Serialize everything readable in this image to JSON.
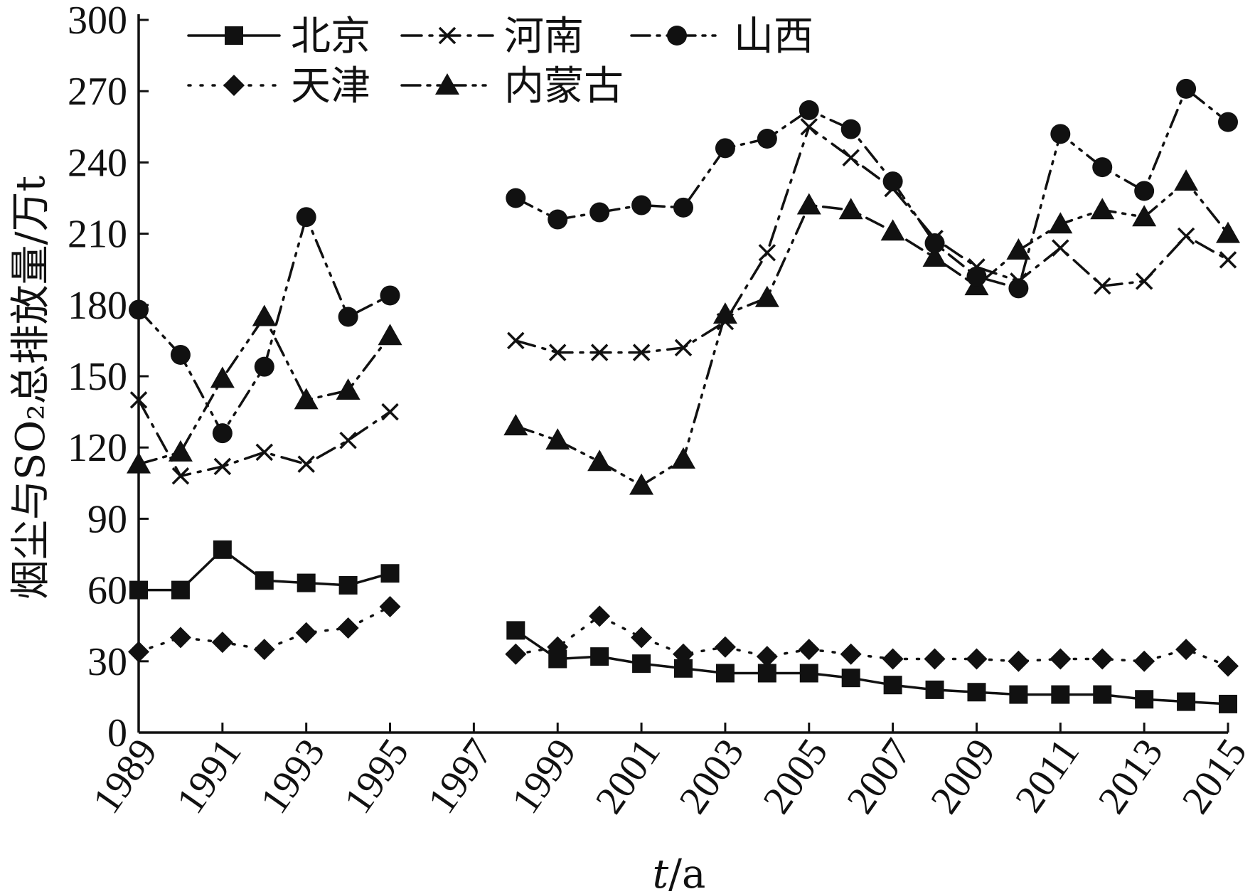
{
  "chart_data": {
    "type": "line",
    "xlabel_italic": "t",
    "xlabel_rest": "/a",
    "ylabel": "烟尘与SO₂总排放量/万t",
    "ylim": [
      0,
      300
    ],
    "xlim": [
      1989,
      2015
    ],
    "yticks": [
      0,
      30,
      60,
      90,
      120,
      150,
      180,
      210,
      240,
      270,
      300
    ],
    "xticks": [
      1989,
      1991,
      1993,
      1995,
      1997,
      1999,
      2001,
      2003,
      2005,
      2007,
      2009,
      2011,
      2013,
      2015
    ],
    "grid": false,
    "legend_position": "top-left",
    "series": [
      {
        "name": "北京",
        "marker": "square",
        "dash": "solid",
        "points": [
          [
            1989,
            60
          ],
          [
            1990,
            60
          ],
          [
            1991,
            77
          ],
          [
            1992,
            64
          ],
          [
            1993,
            63
          ],
          [
            1994,
            62
          ],
          [
            1995,
            67
          ],
          [
            1998,
            43
          ],
          [
            1999,
            31
          ],
          [
            2000,
            32
          ],
          [
            2001,
            29
          ],
          [
            2002,
            27
          ],
          [
            2003,
            25
          ],
          [
            2004,
            25
          ],
          [
            2005,
            25
          ],
          [
            2006,
            23
          ],
          [
            2007,
            20
          ],
          [
            2008,
            18
          ],
          [
            2009,
            17
          ],
          [
            2010,
            16
          ],
          [
            2011,
            16
          ],
          [
            2012,
            16
          ],
          [
            2013,
            14
          ],
          [
            2014,
            13
          ],
          [
            2015,
            12
          ]
        ]
      },
      {
        "name": "天津",
        "marker": "diamond",
        "dash": "dotted",
        "points": [
          [
            1989,
            34
          ],
          [
            1990,
            40
          ],
          [
            1991,
            38
          ],
          [
            1992,
            35
          ],
          [
            1993,
            42
          ],
          [
            1994,
            44
          ],
          [
            1995,
            53
          ],
          [
            1998,
            33
          ],
          [
            1999,
            36
          ],
          [
            2000,
            49
          ],
          [
            2001,
            40
          ],
          [
            2002,
            33
          ],
          [
            2003,
            36
          ],
          [
            2004,
            32
          ],
          [
            2005,
            35
          ],
          [
            2006,
            33
          ],
          [
            2007,
            31
          ],
          [
            2008,
            31
          ],
          [
            2009,
            31
          ],
          [
            2010,
            30
          ],
          [
            2011,
            31
          ],
          [
            2012,
            31
          ],
          [
            2013,
            30
          ],
          [
            2014,
            35
          ],
          [
            2015,
            28
          ]
        ]
      },
      {
        "name": "河南",
        "marker": "x",
        "dash": "dashdot",
        "points": [
          [
            1989,
            140
          ],
          [
            1990,
            108
          ],
          [
            1991,
            112
          ],
          [
            1992,
            118
          ],
          [
            1993,
            113
          ],
          [
            1994,
            123
          ],
          [
            1995,
            135
          ],
          [
            1998,
            165
          ],
          [
            1999,
            160
          ],
          [
            2000,
            160
          ],
          [
            2001,
            160
          ],
          [
            2002,
            162
          ],
          [
            2003,
            173
          ],
          [
            2004,
            202
          ],
          [
            2005,
            255
          ],
          [
            2006,
            242
          ],
          [
            2007,
            229
          ],
          [
            2008,
            208
          ],
          [
            2009,
            196
          ],
          [
            2010,
            190
          ],
          [
            2011,
            204
          ],
          [
            2012,
            188
          ],
          [
            2013,
            190
          ],
          [
            2014,
            209
          ],
          [
            2015,
            199
          ]
        ]
      },
      {
        "name": "内蒙古",
        "marker": "triangle",
        "dash": "dashdotdot",
        "points": [
          [
            1989,
            113
          ],
          [
            1990,
            118
          ],
          [
            1991,
            149
          ],
          [
            1992,
            175
          ],
          [
            1993,
            140
          ],
          [
            1994,
            144
          ],
          [
            1995,
            167
          ],
          [
            1998,
            129
          ],
          [
            1999,
            123
          ],
          [
            2000,
            114
          ],
          [
            2001,
            104
          ],
          [
            2002,
            115
          ],
          [
            2003,
            176
          ],
          [
            2004,
            183
          ],
          [
            2005,
            222
          ],
          [
            2006,
            220
          ],
          [
            2007,
            211
          ],
          [
            2008,
            200
          ],
          [
            2009,
            188
          ],
          [
            2010,
            203
          ],
          [
            2011,
            214
          ],
          [
            2012,
            220
          ],
          [
            2013,
            217
          ],
          [
            2014,
            232
          ],
          [
            2015,
            210
          ]
        ]
      },
      {
        "name": "山西",
        "marker": "circle",
        "dash": "dashdotdot",
        "points": [
          [
            1989,
            178
          ],
          [
            1990,
            159
          ],
          [
            1991,
            126
          ],
          [
            1992,
            154
          ],
          [
            1993,
            217
          ],
          [
            1994,
            175
          ],
          [
            1995,
            184
          ],
          [
            1998,
            225
          ],
          [
            1999,
            216
          ],
          [
            2000,
            219
          ],
          [
            2001,
            222
          ],
          [
            2002,
            221
          ],
          [
            2003,
            246
          ],
          [
            2004,
            250
          ],
          [
            2005,
            262
          ],
          [
            2006,
            254
          ],
          [
            2007,
            232
          ],
          [
            2008,
            206
          ],
          [
            2009,
            192
          ],
          [
            2010,
            187
          ],
          [
            2011,
            252
          ],
          [
            2012,
            238
          ],
          [
            2013,
            228
          ],
          [
            2014,
            271
          ],
          [
            2015,
            257
          ]
        ]
      }
    ]
  }
}
